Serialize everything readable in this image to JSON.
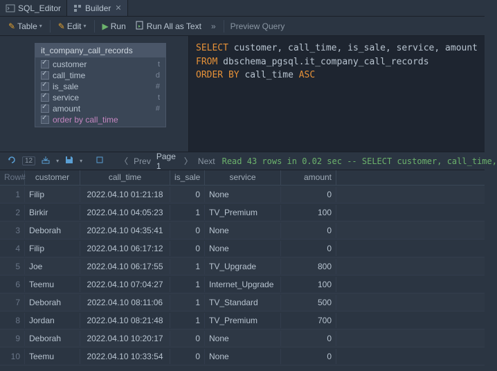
{
  "tabs": [
    {
      "label": "SQL_Editor",
      "active": false
    },
    {
      "label": "Builder",
      "active": true
    }
  ],
  "toolbar": {
    "table": "Table",
    "edit": "Edit",
    "run": "Run",
    "run_all": "Run All as Text",
    "preview": "Preview Query"
  },
  "entity": {
    "name": "it_company_call_records",
    "fields": [
      {
        "name": "customer",
        "type": "t"
      },
      {
        "name": "call_time",
        "type": "d"
      },
      {
        "name": "is_sale",
        "type": "#"
      },
      {
        "name": "service",
        "type": "t"
      },
      {
        "name": "amount",
        "type": "#"
      }
    ],
    "orderby": "order by call_time"
  },
  "sql": {
    "select_kw": "SELECT",
    "select_cols": " customer, call_time, is_sale, service, amount",
    "from_kw": "FROM",
    "from_table": " dbschema_pgsql.it_company_call_records",
    "orderby_kw": "ORDER BY",
    "orderby_col": " call_time ",
    "asc_kw": "ASC"
  },
  "pager": {
    "prev": "Prev",
    "page": "Page 1",
    "next": "Next",
    "status": "Read 43 rows in 0.02 sec -- SELECT customer, call_time,"
  },
  "grid": {
    "headers": {
      "rownum": "Row#",
      "customer": "customer",
      "call_time": "call_time",
      "is_sale": "is_sale",
      "service": "service",
      "amount": "amount"
    },
    "rows": [
      {
        "n": "1",
        "customer": "Filip",
        "call_time": "2022.04.10 01:21:18",
        "is_sale": "0",
        "service": "None",
        "amount": "0"
      },
      {
        "n": "2",
        "customer": "Birkir",
        "call_time": "2022.04.10 04:05:23",
        "is_sale": "1",
        "service": "TV_Premium",
        "amount": "100"
      },
      {
        "n": "3",
        "customer": "Deborah",
        "call_time": "2022.04.10 04:35:41",
        "is_sale": "0",
        "service": "None",
        "amount": "0"
      },
      {
        "n": "4",
        "customer": "Filip",
        "call_time": "2022.04.10 06:17:12",
        "is_sale": "0",
        "service": "None",
        "amount": "0"
      },
      {
        "n": "5",
        "customer": "Joe",
        "call_time": "2022.04.10 06:17:55",
        "is_sale": "1",
        "service": "TV_Upgrade",
        "amount": "800"
      },
      {
        "n": "6",
        "customer": "Teemu",
        "call_time": "2022.04.10 07:04:27",
        "is_sale": "1",
        "service": "Internet_Upgrade",
        "amount": "100"
      },
      {
        "n": "7",
        "customer": "Deborah",
        "call_time": "2022.04.10 08:11:06",
        "is_sale": "1",
        "service": "TV_Standard",
        "amount": "500"
      },
      {
        "n": "8",
        "customer": "Jordan",
        "call_time": "2022.04.10 08:21:48",
        "is_sale": "1",
        "service": "TV_Premium",
        "amount": "700"
      },
      {
        "n": "9",
        "customer": "Deborah",
        "call_time": "2022.04.10 10:20:17",
        "is_sale": "0",
        "service": "None",
        "amount": "0"
      },
      {
        "n": "10",
        "customer": "Teemu",
        "call_time": "2022.04.10 10:33:54",
        "is_sale": "0",
        "service": "None",
        "amount": "0"
      }
    ]
  },
  "colors": {
    "bg": "#2b3542",
    "panel": "#1e2530",
    "keyword": "#e69138",
    "status": "#6cb26c",
    "orderby": "#c586c0"
  }
}
